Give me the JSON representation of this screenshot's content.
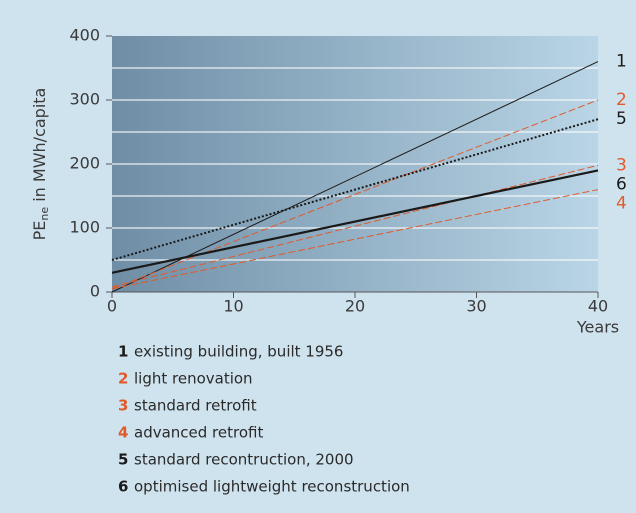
{
  "chart_data": {
    "type": "line",
    "y_label": {
      "main": "PE",
      "sub": "ne",
      "rest": " in MWh/capita"
    },
    "x_label": "Years",
    "x": [
      0,
      40
    ],
    "xlim": [
      0,
      40
    ],
    "xticks": [
      0,
      10,
      20,
      30,
      40
    ],
    "ylim": [
      0,
      400
    ],
    "yticks": [
      0,
      100,
      200,
      300,
      400
    ],
    "grid_lines": [
      50,
      100,
      150,
      200,
      250,
      300,
      350
    ],
    "series": [
      {
        "id": "1",
        "name": "existing building, built 1956",
        "color": "#1a1a1a",
        "style": "solid",
        "width": 1,
        "values": [
          0,
          360
        ]
      },
      {
        "id": "2",
        "name": "light renovation",
        "color": "#e05a2b",
        "style": "dashed",
        "width": 1,
        "values": [
          5,
          300
        ]
      },
      {
        "id": "3",
        "name": "standard retrofit",
        "color": "#e05a2b",
        "style": "dashed",
        "width": 1,
        "values": [
          8,
          198
        ]
      },
      {
        "id": "4",
        "name": "advanced retrofit",
        "color": "#e05a2b",
        "style": "dashed",
        "width": 1,
        "values": [
          5,
          160
        ]
      },
      {
        "id": "5",
        "name": "standard recontruction, 2000",
        "color": "#1a1a1a",
        "style": "dotted",
        "width": 2,
        "values": [
          50,
          270
        ]
      },
      {
        "id": "6",
        "name": "optimised lightweight reconstruction",
        "color": "#1a1a1a",
        "style": "solid",
        "width": 2.2,
        "values": [
          30,
          190
        ]
      }
    ]
  }
}
